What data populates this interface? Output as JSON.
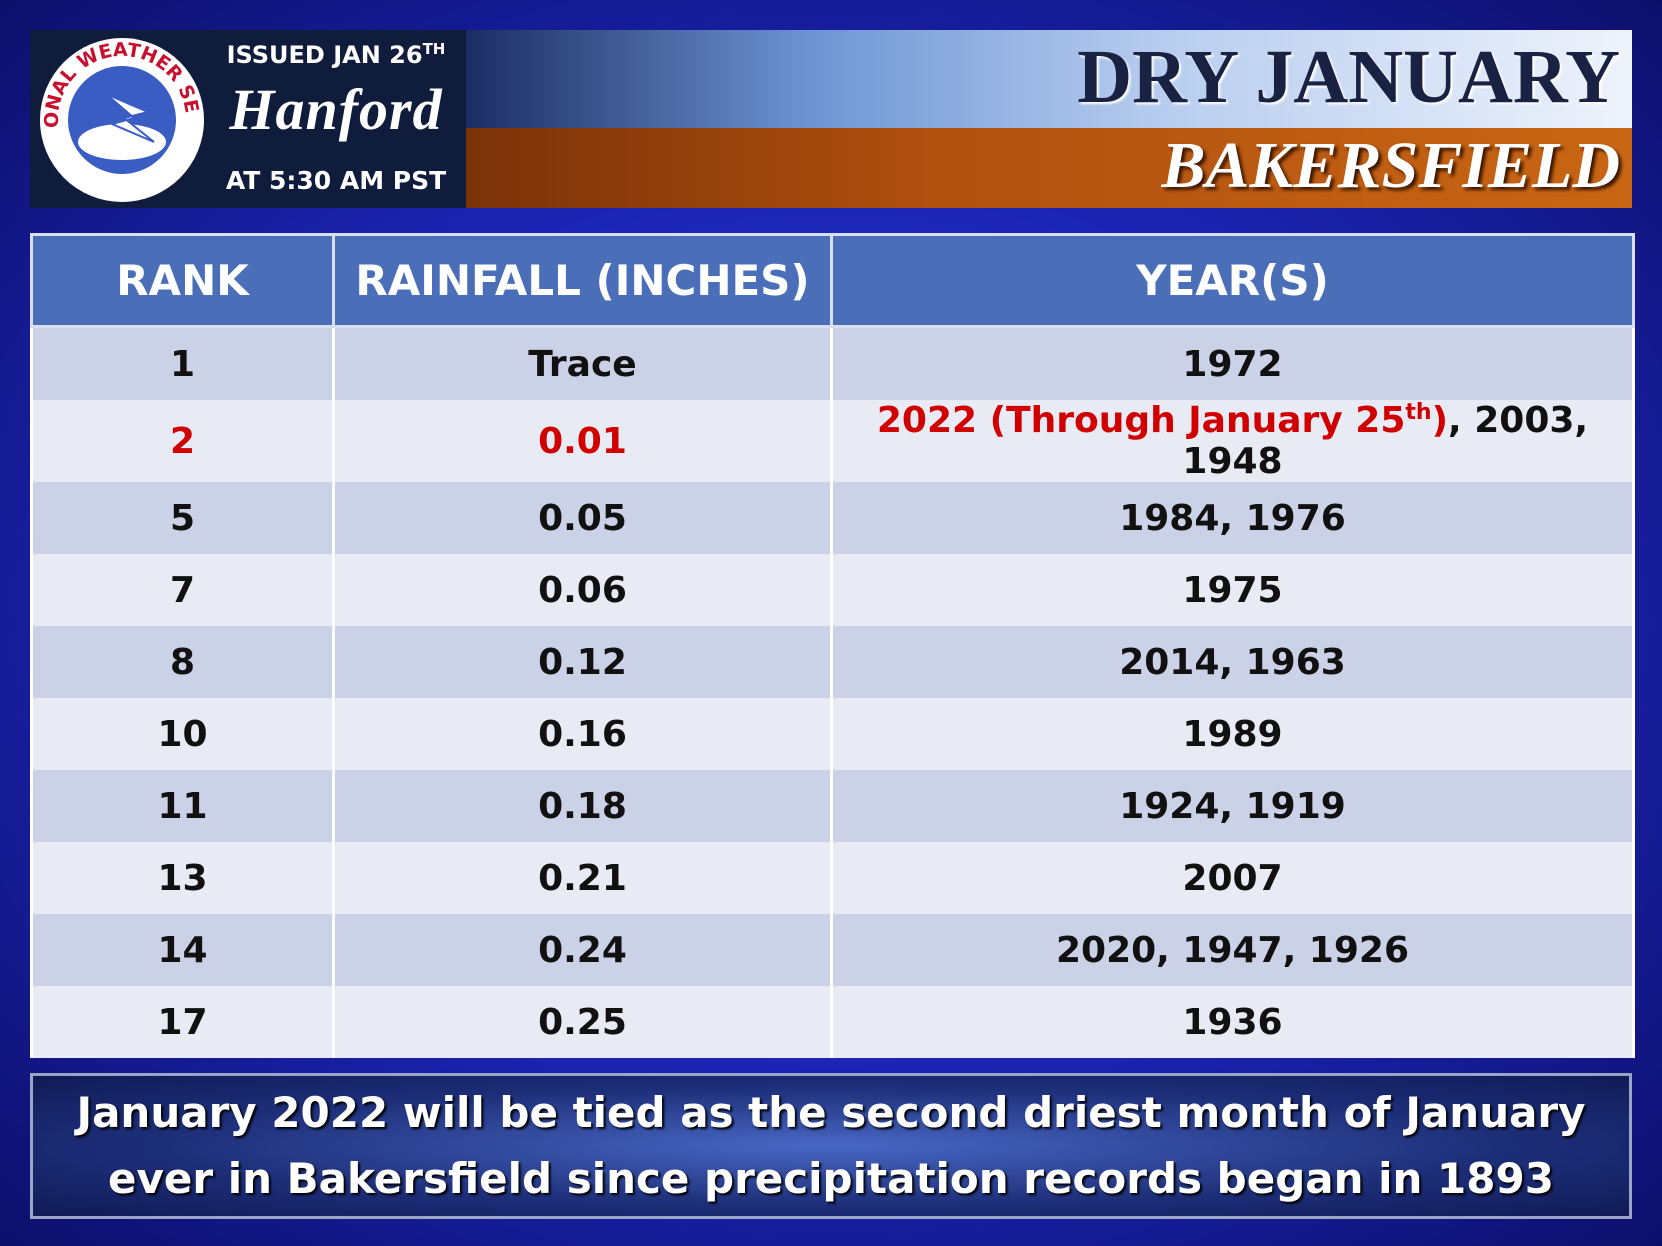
{
  "header": {
    "logo_text": "NATIONAL WEATHER SERVICE",
    "issued": "ISSUED JAN 26",
    "issued_suffix": "TH",
    "office": "Hanford",
    "time": "AT 5:30 AM PST",
    "title": "DRY JANUARY",
    "subtitle": "BAKERSFIELD"
  },
  "table": {
    "columns": [
      "RANK",
      "RAINFALL (INCHES)",
      "YEAR(S)"
    ],
    "rows": [
      [
        "1",
        "Trace",
        "1972"
      ],
      [
        "2",
        "0.01",
        {
          "highlight": "2022 (Through January 25",
          "sup": "th",
          "close": ")",
          "rest": ", 2003, 1948"
        }
      ],
      [
        "5",
        "0.05",
        "1984, 1976"
      ],
      [
        "7",
        "0.06",
        "1975"
      ],
      [
        "8",
        "0.12",
        "2014, 1963"
      ],
      [
        "10",
        "0.16",
        "1989"
      ],
      [
        "11",
        "0.18",
        "1924, 1919"
      ],
      [
        "13",
        "0.21",
        "2007"
      ],
      [
        "14",
        "0.24",
        "2020, 1947, 1926"
      ],
      [
        "17",
        "0.25",
        "1936"
      ]
    ]
  },
  "footer": "January 2022 will be tied as the second driest month of January ever in Bakersfield since precipitation records began in 1893"
}
